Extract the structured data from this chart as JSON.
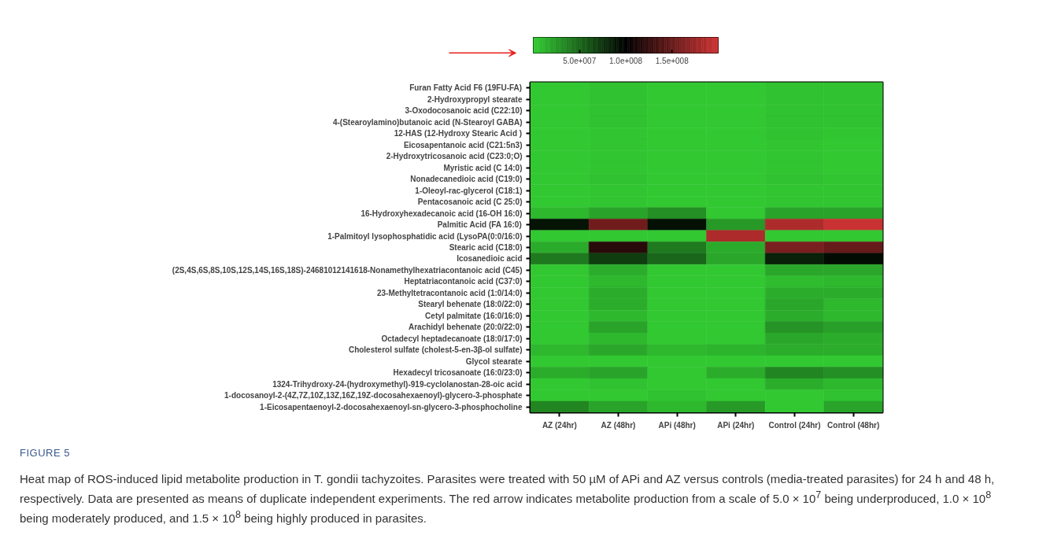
{
  "chart_data": {
    "type": "heatmap",
    "categories": [
      "AZ (24hr)",
      "AZ (48hr)",
      "APi (48hr)",
      "APi (24hr)",
      "Control (24hr)",
      "Control (48hr)"
    ],
    "y_categories": [
      "Furan Fatty Acid F6 (19FU-FA)",
      "2-Hydroxypropyl stearate",
      "3-Oxodocosanoic acid (C22:10)",
      "4-(Stearoylamino)butanoic acid (N-Stearoyl GABA)",
      "12-HAS (12-Hydroxy Stearic Acid )",
      "Eicosapentanoic acid (C21:5n3)",
      "2-Hydroxytricosanoic acid (C23:0;O)",
      "Myristic acid (C 14:0)",
      "Nonadecanedioic acid (C19:0)",
      "1-Oleoyl-rac-glycerol (C18:1)",
      "Pentacosanoic acid (C 25:0)",
      "16-Hydroxyhexadecanoic acid (16-OH 16:0)",
      "Palmitic Acid (FA 16:0)",
      "1-Palmitoyl lysophosphatidic acid (LysoPA(0:0/16:0)",
      "Stearic acid (C18:0)",
      "Icosanedioic acid",
      "(2S,4S,6S,8S,10S,12S,14S,16S,18S)-24681012141618-Nonamethylhexatriacontanoic acid (C45)",
      "Heptatriacontanoic acid (C37:0)",
      "23-Methyltetracontanoic acid (1:0/14:0)",
      "Stearyl behenate (18:0/22:0)",
      "Cetyl palmitate (16:0/16:0)",
      "Arachidyl behenate (20:0/22:0)",
      "Octadecyl heptadecanoate (18:0/17:0)",
      "Cholesterol sulfate (cholest-5-en-3β-ol sulfate)",
      "Glycol stearate",
      "Hexadecyl tricosanoate (16:0/23:0)",
      "1324-Trihydroxy-24-(hydroxymethyl)-919-cyclolanostan-28-oic acid",
      "1-docosanoyl-2-(4Z,7Z,10Z,13Z,16Z,19Z-docosahexaenoyl)-glycero-3-phosphate",
      "1-Eicosapentaenoyl-2-docosahexaenoyl-sn-glycero-3-phosphocholine"
    ],
    "cells": [
      [
        2000000,
        5000000,
        2000000,
        2000000,
        5000000,
        5000000
      ],
      [
        2000000,
        5000000,
        2000000,
        2000000,
        5000000,
        5000000
      ],
      [
        2000000,
        5000000,
        2000000,
        2000000,
        5000000,
        5000000
      ],
      [
        2000000,
        5000000,
        2000000,
        2000000,
        5000000,
        5000000
      ],
      [
        2000000,
        3000000,
        2000000,
        2000000,
        5000000,
        3000000
      ],
      [
        2000000,
        3000000,
        2000000,
        2000000,
        3000000,
        2000000
      ],
      [
        2000000,
        3000000,
        2000000,
        2000000,
        3000000,
        2000000
      ],
      [
        2000000,
        3000000,
        2000000,
        2000000,
        3000000,
        2000000
      ],
      [
        2000000,
        5000000,
        2000000,
        2000000,
        5000000,
        3000000
      ],
      [
        2000000,
        3000000,
        2000000,
        2000000,
        3000000,
        3000000
      ],
      [
        2000000,
        3000000,
        2000000,
        2000000,
        3000000,
        3000000
      ],
      [
        10000000,
        20000000,
        30000000,
        2000000,
        20000000,
        20000000
      ],
      [
        90000000,
        155000000,
        92000000,
        25000000,
        185000000,
        198000000
      ],
      [
        2000000,
        2000000,
        2000000,
        185000000,
        2000000,
        2000000
      ],
      [
        16000000,
        120000000,
        40000000,
        16000000,
        160000000,
        150000000
      ],
      [
        40000000,
        70000000,
        50000000,
        18000000,
        84000000,
        94000000
      ],
      [
        2000000,
        15000000,
        2000000,
        2000000,
        18000000,
        18000000
      ],
      [
        2000000,
        10000000,
        2000000,
        2000000,
        8000000,
        10000000
      ],
      [
        2000000,
        15000000,
        2000000,
        2000000,
        15000000,
        15000000
      ],
      [
        2000000,
        15000000,
        2000000,
        2000000,
        18000000,
        10000000
      ],
      [
        2000000,
        10000000,
        2000000,
        2000000,
        15000000,
        10000000
      ],
      [
        2000000,
        20000000,
        2000000,
        2000000,
        28000000,
        22000000
      ],
      [
        2000000,
        10000000,
        2000000,
        2000000,
        18000000,
        15000000
      ],
      [
        10000000,
        18000000,
        10000000,
        12000000,
        15000000,
        15000000
      ],
      [
        2000000,
        2000000,
        2000000,
        2000000,
        2000000,
        2000000
      ],
      [
        15000000,
        20000000,
        2000000,
        15000000,
        35000000,
        30000000
      ],
      [
        2000000,
        5000000,
        2000000,
        2000000,
        15000000,
        10000000
      ],
      [
        2000000,
        2000000,
        5000000,
        2000000,
        2000000,
        5000000
      ],
      [
        35000000,
        20000000,
        10000000,
        25000000,
        2000000,
        20000000
      ]
    ],
    "clim": [
      0,
      200000000
    ],
    "cticks": [
      {
        "value": 50000000,
        "label": "5.0e+007"
      },
      {
        "value": 100000000,
        "label": "1.0e+008"
      },
      {
        "value": 150000000,
        "label": "1.5e+008"
      }
    ],
    "annotations": [
      "FIGURE 5",
      "Heat map of ROS-induced lipid metabolite production in T. gondii tachyzoites. Parasites were treated with 50 µM of APi and AZ versus controls (media-treated parasites) for 24 h and 48 h, respectively. Data are presented as means of duplicate independent experiments. The red arrow indicates metabolite production from a scale of 5.0 × 10$^{7}$ being underproduced, 1.0 × 10$^{8}$ being moderately produced, and 1.5 × 10$^{8}$ being highly produced in parasites."
    ]
  }
}
